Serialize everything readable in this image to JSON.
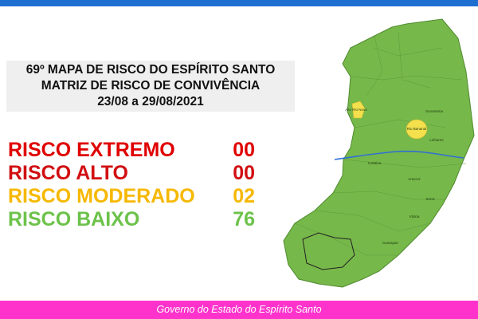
{
  "header": {
    "title_lines": [
      "69º MAPA DE RISCO DO ESPÍRITO SANTO",
      "MATRIZ DE RISCO DE CONVIVÊNCIA",
      "23/08 a 29/08/2021"
    ]
  },
  "risks": [
    {
      "label": "RISCO EXTREMO",
      "count": "00",
      "color": "#e00000"
    },
    {
      "label": "RISCO ALTO",
      "count": "00",
      "color": "#d10f12"
    },
    {
      "label": "RISCO MODERADO",
      "count": "02",
      "color": "#f6b800"
    },
    {
      "label": "RISCO BAIXO",
      "count": "76",
      "color": "#6cc24a"
    }
  ],
  "map": {
    "labels": [
      "Alto Rio Novo",
      "Rio Bananal",
      "Linhares",
      "Colatina",
      "Aracruz",
      "Serra",
      "Vitória",
      "Guarapari",
      "Sooretama"
    ]
  },
  "footer": {
    "text": "Governo do Estado do Espírito Santo"
  }
}
